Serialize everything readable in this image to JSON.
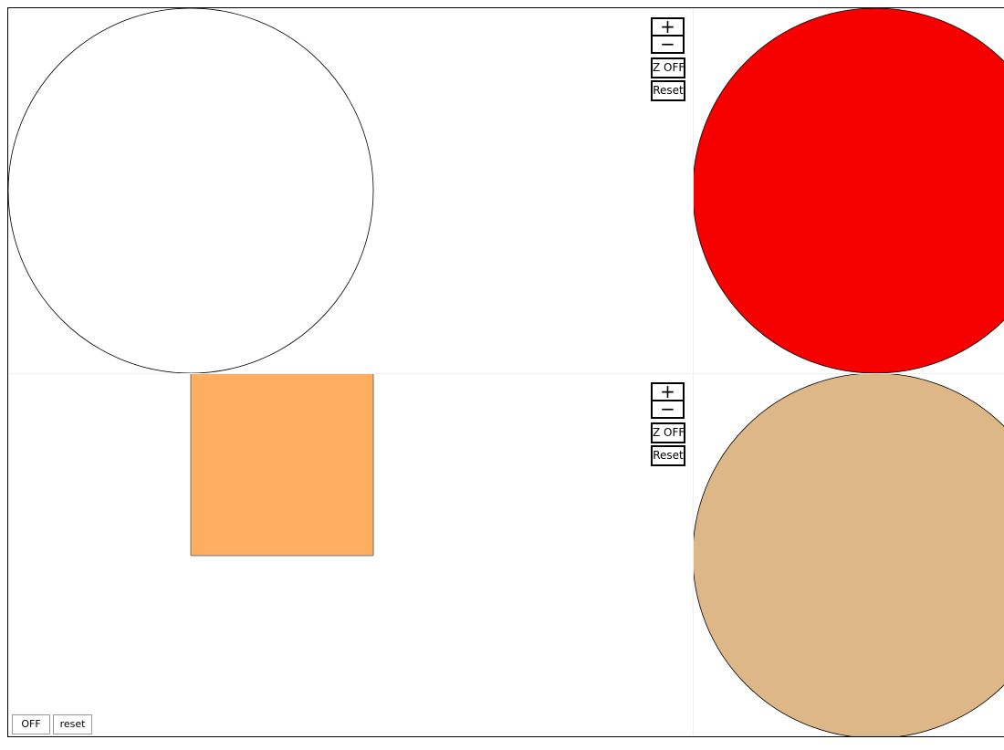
{
  "panes": {
    "top_left": {
      "shape": "circle",
      "fill": "#ffffff",
      "stroke": "#000000"
    },
    "top_right": {
      "shape": "circle",
      "fill": "#f70000",
      "stroke": "#000000"
    },
    "bottom_left": {
      "shape": "square",
      "fill": "#ffae5f",
      "stroke": "#555555"
    },
    "bottom_right": {
      "shape": "circle",
      "fill": "#ddb788",
      "stroke": "#000000"
    }
  },
  "zoom_controls_top": {
    "zoom_in_label": "+",
    "zoom_out_label": "−",
    "z_toggle_label": "Z OFF",
    "reset_label": "Reset"
  },
  "zoom_controls_bottom": {
    "zoom_in_label": "+",
    "zoom_out_label": "−",
    "z_toggle_label": "Z OFF",
    "reset_label": "Reset"
  },
  "global_controls": {
    "toggle_label": "OFF",
    "reset_label": "reset"
  }
}
